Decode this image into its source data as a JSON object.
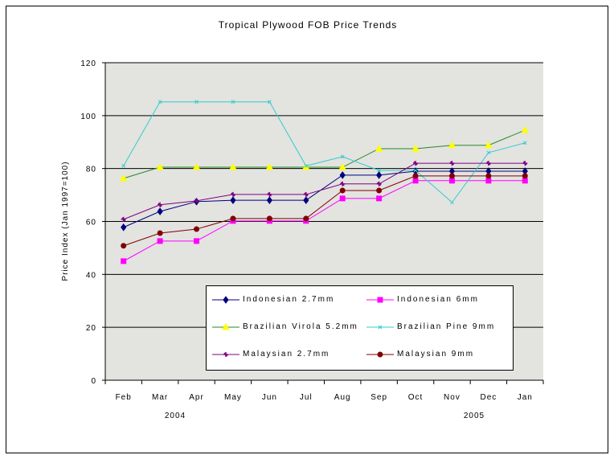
{
  "chart_data": {
    "type": "line",
    "title": "Tropical Plywood FOB Price Trends",
    "xlabel": "",
    "ylabel": "Price Index (Jan 1997=100)",
    "ylim": [
      0,
      120
    ],
    "yticks": [
      "0",
      "20",
      "40",
      "60",
      "80",
      "100",
      "120"
    ],
    "categories": [
      "Feb",
      "Mar",
      "Apr",
      "May",
      "Jun",
      "Jul",
      "Aug",
      "Sep",
      "Oct",
      "Nov",
      "Dec",
      "Jan"
    ],
    "year_labels": [
      "2004",
      "2005"
    ],
    "grid": true,
    "legend_position": "bottom-center-inside",
    "series": [
      {
        "name": "Indonesian 2.7mm",
        "color": "#000080",
        "marker": "diamond",
        "values": [
          57.8,
          63.8,
          67.5,
          68,
          68,
          68,
          77.5,
          77.5,
          79,
          79,
          79,
          79
        ]
      },
      {
        "name": "Indonesian 6mm",
        "color": "#ff00ff",
        "marker": "square",
        "values": [
          45,
          52.6,
          52.6,
          60.2,
          60.2,
          60.2,
          68.7,
          68.7,
          75.4,
          75.4,
          75.4,
          75.4
        ]
      },
      {
        "name": "Brazilian Virola 5.2mm",
        "color": "#228b22",
        "markerColor": "#ffff00",
        "marker": "triangle",
        "values": [
          76.3,
          80.5,
          80.5,
          80.5,
          80.5,
          80.5,
          80.5,
          87.5,
          87.5,
          88.8,
          88.8,
          94.5
        ]
      },
      {
        "name": "Brazilian Pine 9mm",
        "color": "#33cccc",
        "marker": "x",
        "values": [
          81,
          105.2,
          105.2,
          105.2,
          105.2,
          81,
          84.5,
          79.3,
          79.3,
          67.2,
          86,
          89.7
        ]
      },
      {
        "name": "Malaysian 2.7mm",
        "color": "#800080",
        "marker": "star",
        "values": [
          60.8,
          66.3,
          67.8,
          70.2,
          70.2,
          70.2,
          74.2,
          74.2,
          82,
          82,
          82,
          82
        ]
      },
      {
        "name": "Malaysian 9mm",
        "color": "#800000",
        "marker": "circle",
        "values": [
          50.8,
          55.6,
          57.1,
          61.1,
          61.1,
          61.1,
          71.7,
          71.7,
          77.2,
          77.2,
          77.2,
          77.2
        ]
      }
    ]
  }
}
